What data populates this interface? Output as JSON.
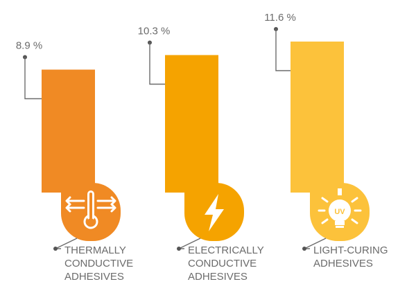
{
  "chart_data": {
    "type": "bar",
    "categories": [
      [
        "THERMALLY",
        "CONDUCTIVE",
        "ADHESIVES"
      ],
      [
        "ELECTRICALLY",
        "CONDUCTIVE",
        "ADHESIVES"
      ],
      [
        "LIGHT-CURING",
        "ADHESIVES"
      ]
    ],
    "values": [
      8.9,
      10.3,
      11.6
    ],
    "value_labels": [
      "8.9 %",
      "10.3 %",
      "11.6 %"
    ],
    "unit": "%",
    "ylim": [
      0,
      12
    ],
    "grid": false,
    "legend": "none",
    "colors": [
      "#f08a24",
      "#f5a300",
      "#fcc23b"
    ],
    "icons": [
      "thermometer-icon",
      "lightning-bolt-icon",
      "uv-lightbulb-icon"
    ],
    "icon_text": [
      "",
      "",
      "UV"
    ]
  }
}
